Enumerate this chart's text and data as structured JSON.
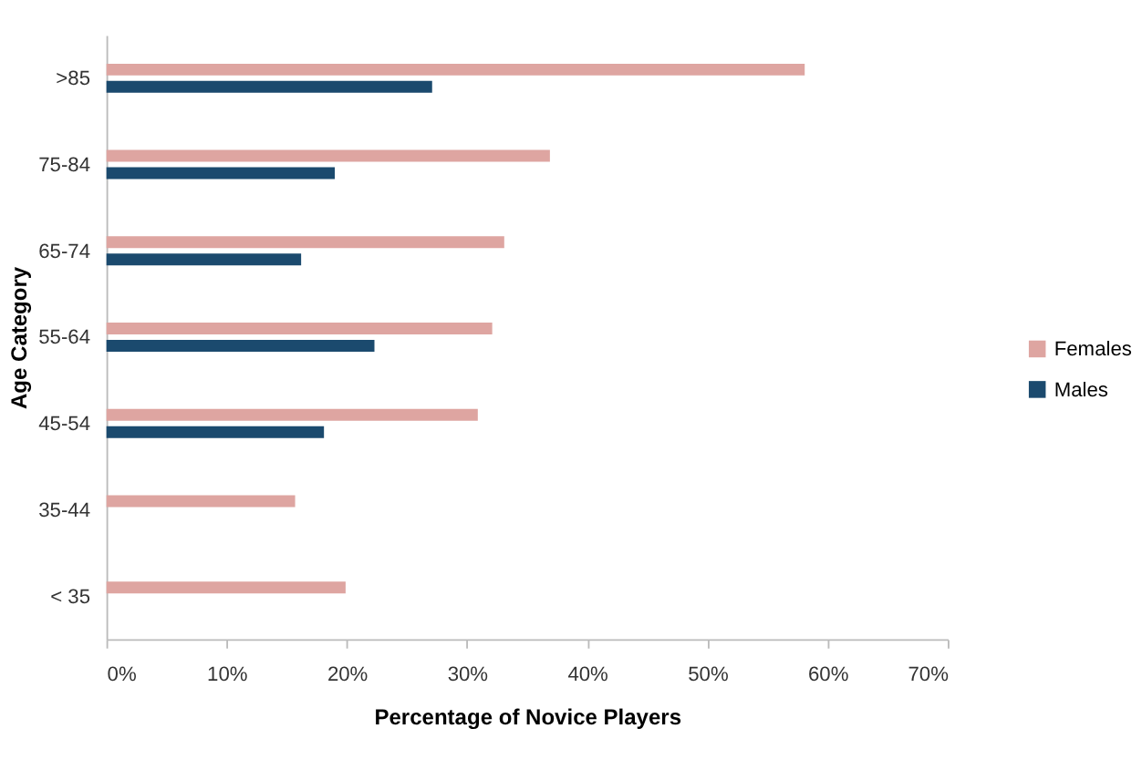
{
  "chart_data": {
    "type": "bar",
    "orientation": "horizontal",
    "xlabel": "Percentage of Novice Players",
    "ylabel": "Age Category",
    "categories": [
      ">85",
      "75-84",
      "65-74",
      "55-64",
      "45-54",
      "35-44",
      "< 35"
    ],
    "series": [
      {
        "name": "Females",
        "color": "#dea5a1",
        "values": [
          58.1,
          36.9,
          33.1,
          32.1,
          30.9,
          15.7,
          19.9
        ]
      },
      {
        "name": "Males",
        "color": "#1b4a6e",
        "values": [
          27.1,
          19.0,
          16.2,
          22.3,
          18.1,
          null,
          null
        ]
      }
    ],
    "xlim": [
      0,
      70
    ],
    "xticks": [
      {
        "value": 0,
        "label": "0%"
      },
      {
        "value": 10,
        "label": "10%"
      },
      {
        "value": 20,
        "label": "20%"
      },
      {
        "value": 30,
        "label": "30%"
      },
      {
        "value": 40,
        "label": "40%"
      },
      {
        "value": 50,
        "label": "50%"
      },
      {
        "value": 60,
        "label": "60%"
      },
      {
        "value": 70,
        "label": "70%"
      }
    ],
    "legend": "right",
    "grid": false
  }
}
